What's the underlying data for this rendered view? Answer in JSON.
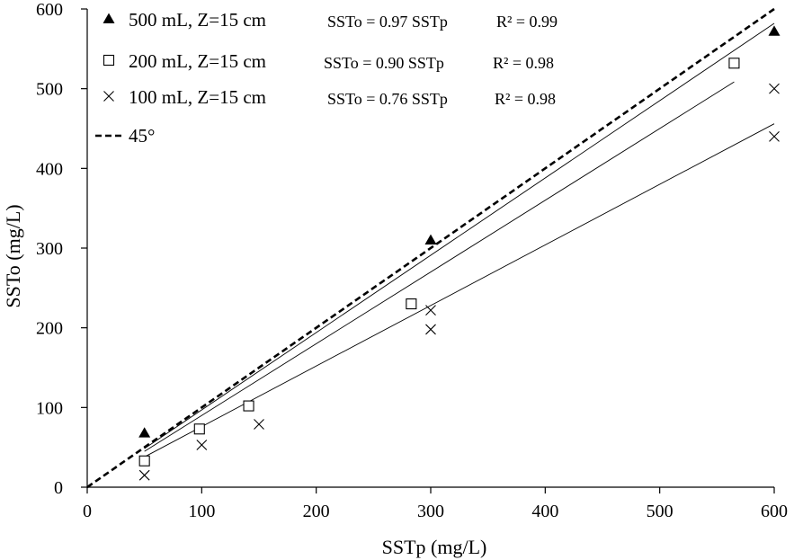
{
  "chart_data": {
    "type": "scatter",
    "title": "",
    "xlabel": "SSTp (mg/L)",
    "ylabel": "SSTo (mg/L)",
    "xlim": [
      0,
      600
    ],
    "ylim": [
      0,
      600
    ],
    "xticks": [
      0,
      100,
      200,
      300,
      400,
      500,
      600
    ],
    "yticks": [
      0,
      100,
      200,
      300,
      400,
      500,
      600
    ],
    "grid": false,
    "legend_position": "top-left",
    "series": [
      {
        "name": "500 mL, Z=15 cm",
        "marker": "filled-triangle",
        "equation": "SSTo = 0.97 SSTp",
        "r2": "R² = 0.99",
        "slope": 0.97,
        "fit_x_range": [
          50,
          600
        ],
        "points": [
          [
            50,
            68
          ],
          [
            300,
            310
          ],
          [
            600,
            572
          ]
        ]
      },
      {
        "name": "200 mL, Z=15 cm",
        "marker": "open-square",
        "equation": "SSTo = 0.90 SSTp",
        "r2": "R² = 0.98",
        "slope": 0.9,
        "fit_x_range": [
          50,
          565
        ],
        "points": [
          [
            50,
            33
          ],
          [
            98,
            73
          ],
          [
            141,
            102
          ],
          [
            283,
            230
          ],
          [
            565,
            532
          ]
        ]
      },
      {
        "name": "100 mL, Z=15 cm",
        "marker": "cross",
        "equation": "SSTo = 0.76 SSTp",
        "r2": "R² = 0.98",
        "slope": 0.76,
        "fit_x_range": [
          50,
          600
        ],
        "points": [
          [
            50,
            15
          ],
          [
            100,
            53
          ],
          [
            150,
            79
          ],
          [
            300,
            222
          ],
          [
            300,
            198
          ],
          [
            600,
            500
          ],
          [
            600,
            440
          ]
        ]
      }
    ],
    "reference_line": {
      "name": "45°",
      "style": "dashed",
      "slope": 1
    }
  }
}
